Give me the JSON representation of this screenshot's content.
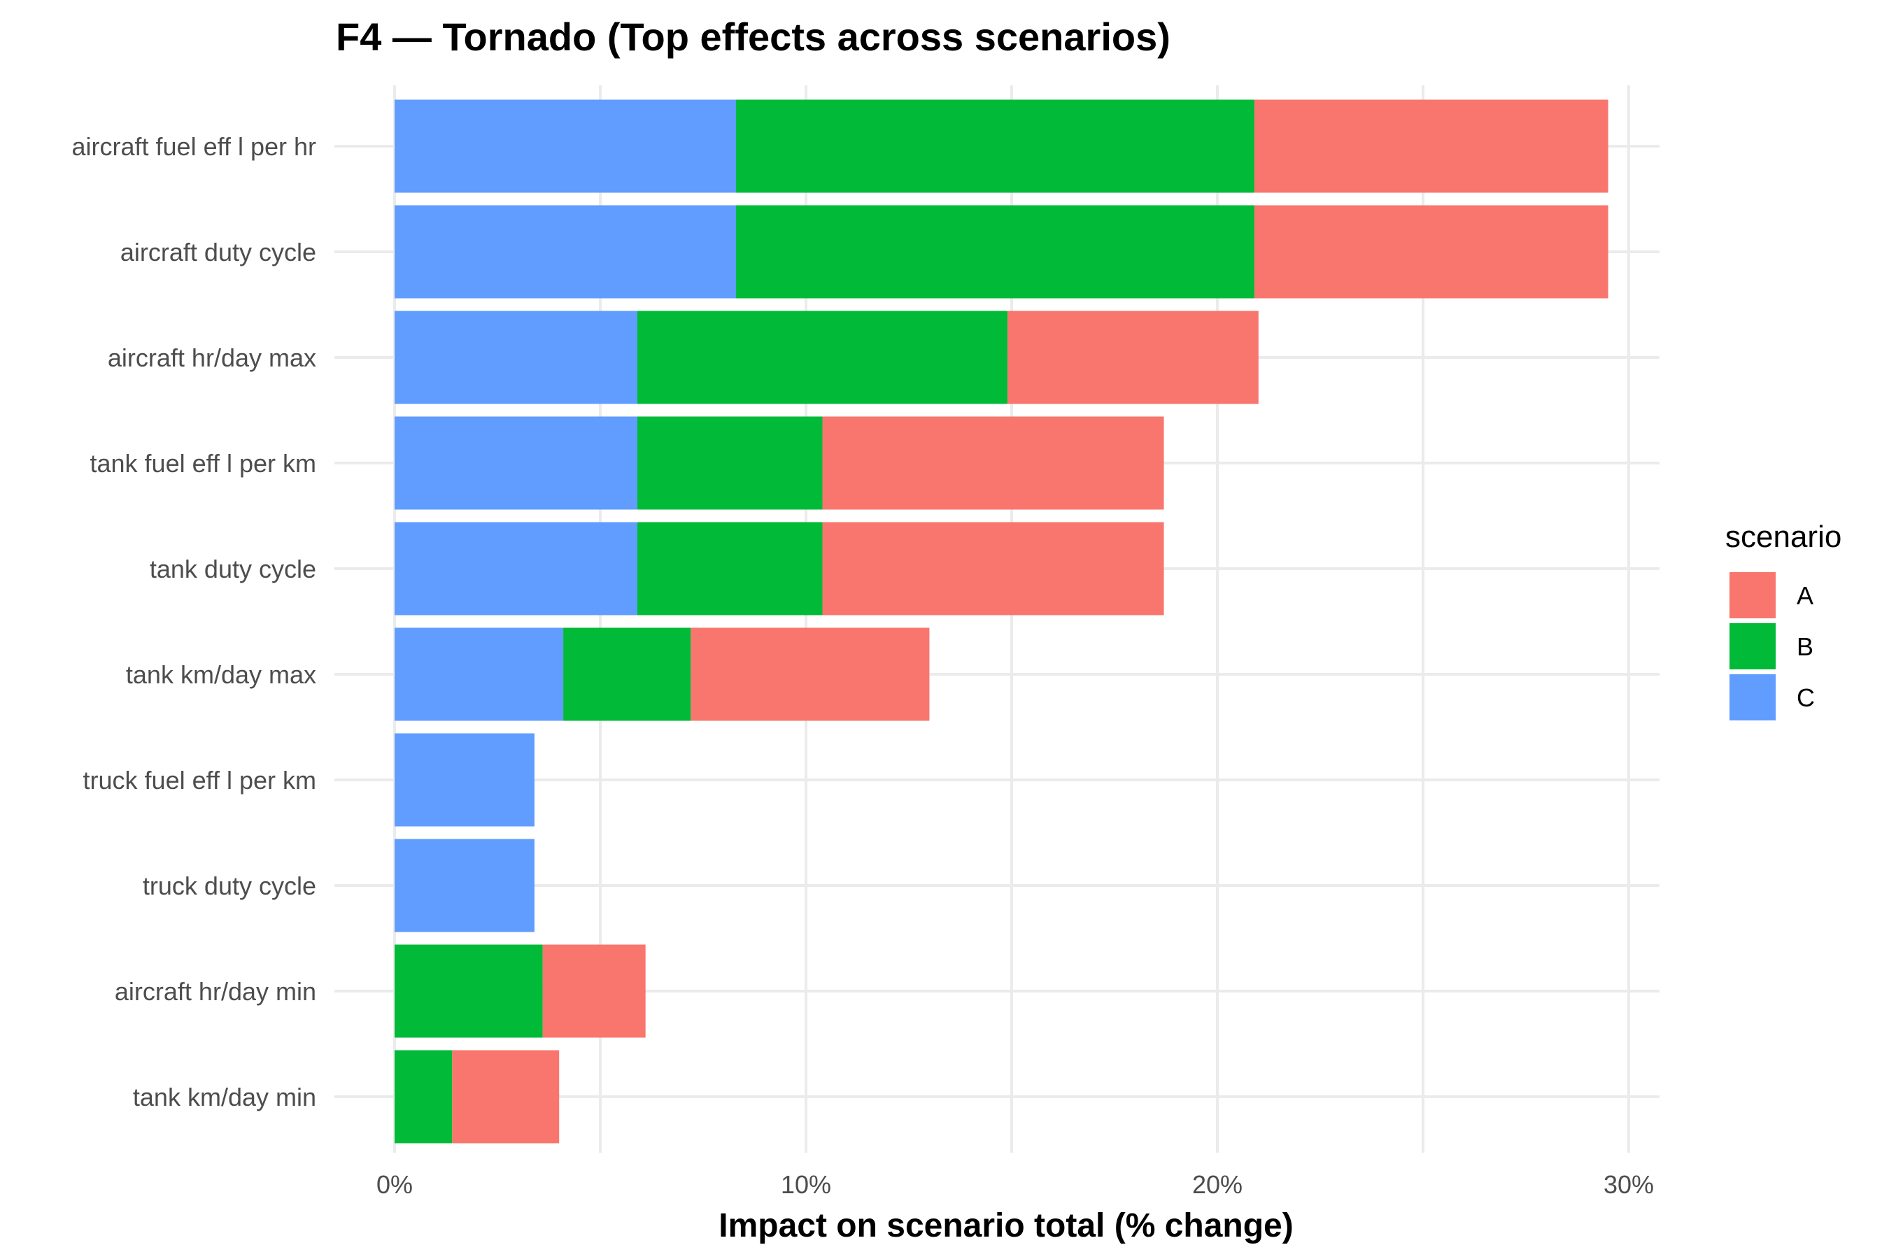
{
  "chart_data": {
    "type": "bar",
    "orientation": "horizontal",
    "stacked": true,
    "title": "F4 — Tornado (Top effects across scenarios)",
    "xlabel": "Impact on scenario total (% change)",
    "ylabel": "",
    "xlim": [
      0,
      31
    ],
    "x_ticks": [
      0,
      10,
      20,
      30
    ],
    "x_tick_labels": [
      "0%",
      "10%",
      "20%",
      "30%"
    ],
    "grid": true,
    "legend_position": "right",
    "legend_title": "scenario",
    "legend_order": [
      "A",
      "B",
      "C"
    ],
    "colors": {
      "A": "#F8766D",
      "B": "#00BA38",
      "C": "#619CFF"
    },
    "categories": [
      "aircraft fuel eff l per hr",
      "aircraft duty cycle",
      "aircraft hr/day max",
      "tank fuel eff l per km",
      "tank duty cycle",
      "tank km/day max",
      "truck fuel eff l per km",
      "truck duty cycle",
      "aircraft hr/day min",
      "tank km/day min"
    ],
    "stack_order": [
      "C",
      "B",
      "A"
    ],
    "series": [
      {
        "name": "C",
        "values": [
          8.3,
          8.3,
          5.9,
          5.9,
          5.9,
          4.1,
          3.4,
          3.4,
          0,
          0
        ]
      },
      {
        "name": "B",
        "values": [
          12.6,
          12.6,
          9.0,
          4.5,
          4.5,
          3.1,
          0,
          0,
          3.6,
          1.4
        ]
      },
      {
        "name": "A",
        "values": [
          8.6,
          8.6,
          6.1,
          8.3,
          8.3,
          5.8,
          0,
          0,
          2.5,
          2.6
        ]
      }
    ]
  }
}
